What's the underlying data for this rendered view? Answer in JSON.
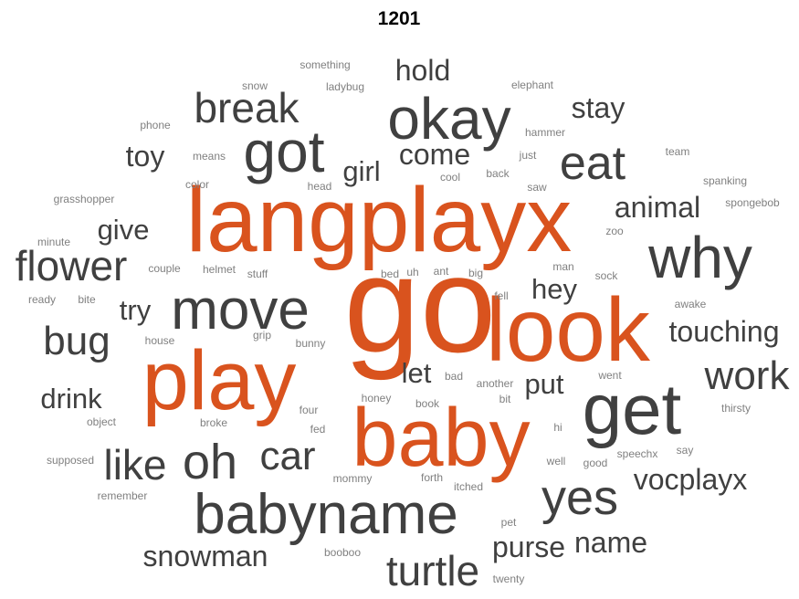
{
  "chart_data": {
    "type": "wordcloud",
    "title": "1201",
    "colors": {
      "highlight": "#D9531E",
      "primary": "#404040",
      "secondary": "#808080"
    },
    "words": [
      {
        "text": "go",
        "weight": 100,
        "tier": "highlight"
      },
      {
        "text": "langplayx",
        "weight": 86,
        "tier": "highlight"
      },
      {
        "text": "look",
        "weight": 82,
        "tier": "highlight"
      },
      {
        "text": "play",
        "weight": 80,
        "tier": "highlight"
      },
      {
        "text": "baby",
        "weight": 78,
        "tier": "highlight"
      },
      {
        "text": "get",
        "weight": 64,
        "tier": "primary"
      },
      {
        "text": "why",
        "weight": 55,
        "tier": "primary"
      },
      {
        "text": "okay",
        "weight": 54,
        "tier": "primary"
      },
      {
        "text": "got",
        "weight": 54,
        "tier": "primary"
      },
      {
        "text": "move",
        "weight": 53,
        "tier": "primary"
      },
      {
        "text": "babyname",
        "weight": 53,
        "tier": "primary"
      },
      {
        "text": "oh",
        "weight": 46,
        "tier": "primary"
      },
      {
        "text": "yes",
        "weight": 45,
        "tier": "primary"
      },
      {
        "text": "eat",
        "weight": 44,
        "tier": "primary"
      },
      {
        "text": "break",
        "weight": 40,
        "tier": "primary"
      },
      {
        "text": "flower",
        "weight": 40,
        "tier": "primary"
      },
      {
        "text": "like",
        "weight": 40,
        "tier": "primary"
      },
      {
        "text": "turtle",
        "weight": 40,
        "tier": "primary"
      },
      {
        "text": "car",
        "weight": 39,
        "tier": "primary"
      },
      {
        "text": "bug",
        "weight": 39,
        "tier": "primary"
      },
      {
        "text": "work",
        "weight": 39,
        "tier": "primary"
      },
      {
        "text": "touching",
        "weight": 30,
        "tier": "primary"
      },
      {
        "text": "come",
        "weight": 30,
        "tier": "primary"
      },
      {
        "text": "animal",
        "weight": 30,
        "tier": "primary"
      },
      {
        "text": "vocplayx",
        "weight": 30,
        "tier": "primary"
      },
      {
        "text": "hold",
        "weight": 30,
        "tier": "primary"
      },
      {
        "text": "stay",
        "weight": 30,
        "tier": "primary"
      },
      {
        "text": "toy",
        "weight": 30,
        "tier": "primary"
      },
      {
        "text": "snowman",
        "weight": 30,
        "tier": "primary"
      },
      {
        "text": "purse",
        "weight": 30,
        "tier": "primary"
      },
      {
        "text": "name",
        "weight": 30,
        "tier": "primary"
      },
      {
        "text": "girl",
        "weight": 28,
        "tier": "primary"
      },
      {
        "text": "give",
        "weight": 28,
        "tier": "primary"
      },
      {
        "text": "try",
        "weight": 28,
        "tier": "primary"
      },
      {
        "text": "hey",
        "weight": 28,
        "tier": "primary"
      },
      {
        "text": "drink",
        "weight": 28,
        "tier": "primary"
      },
      {
        "text": "let",
        "weight": 28,
        "tier": "primary"
      },
      {
        "text": "put",
        "weight": 28,
        "tier": "primary"
      },
      {
        "text": "something",
        "weight": 9,
        "tier": "secondary"
      },
      {
        "text": "snow",
        "weight": 9,
        "tier": "secondary"
      },
      {
        "text": "ladybug",
        "weight": 9,
        "tier": "secondary"
      },
      {
        "text": "elephant",
        "weight": 9,
        "tier": "secondary"
      },
      {
        "text": "phone",
        "weight": 9,
        "tier": "secondary"
      },
      {
        "text": "hammer",
        "weight": 9,
        "tier": "secondary"
      },
      {
        "text": "means",
        "weight": 9,
        "tier": "secondary"
      },
      {
        "text": "just",
        "weight": 9,
        "tier": "secondary"
      },
      {
        "text": "team",
        "weight": 9,
        "tier": "secondary"
      },
      {
        "text": "cool",
        "weight": 9,
        "tier": "secondary"
      },
      {
        "text": "back",
        "weight": 9,
        "tier": "secondary"
      },
      {
        "text": "color",
        "weight": 9,
        "tier": "secondary"
      },
      {
        "text": "head",
        "weight": 9,
        "tier": "secondary"
      },
      {
        "text": "saw",
        "weight": 9,
        "tier": "secondary"
      },
      {
        "text": "spanking",
        "weight": 9,
        "tier": "secondary"
      },
      {
        "text": "grasshopper",
        "weight": 9,
        "tier": "secondary"
      },
      {
        "text": "spongebob",
        "weight": 9,
        "tier": "secondary"
      },
      {
        "text": "zoo",
        "weight": 9,
        "tier": "secondary"
      },
      {
        "text": "minute",
        "weight": 9,
        "tier": "secondary"
      },
      {
        "text": "couple",
        "weight": 9,
        "tier": "secondary"
      },
      {
        "text": "helmet",
        "weight": 9,
        "tier": "secondary"
      },
      {
        "text": "stuff",
        "weight": 9,
        "tier": "secondary"
      },
      {
        "text": "bed",
        "weight": 9,
        "tier": "secondary"
      },
      {
        "text": "uh",
        "weight": 9,
        "tier": "secondary"
      },
      {
        "text": "ant",
        "weight": 9,
        "tier": "secondary"
      },
      {
        "text": "big",
        "weight": 9,
        "tier": "secondary"
      },
      {
        "text": "man",
        "weight": 9,
        "tier": "secondary"
      },
      {
        "text": "sock",
        "weight": 9,
        "tier": "secondary"
      },
      {
        "text": "ready",
        "weight": 9,
        "tier": "secondary"
      },
      {
        "text": "bite",
        "weight": 9,
        "tier": "secondary"
      },
      {
        "text": "fell",
        "weight": 9,
        "tier": "secondary"
      },
      {
        "text": "awake",
        "weight": 9,
        "tier": "secondary"
      },
      {
        "text": "house",
        "weight": 9,
        "tier": "secondary"
      },
      {
        "text": "grip",
        "weight": 9,
        "tier": "secondary"
      },
      {
        "text": "bunny",
        "weight": 9,
        "tier": "secondary"
      },
      {
        "text": "went",
        "weight": 9,
        "tier": "secondary"
      },
      {
        "text": "bad",
        "weight": 9,
        "tier": "secondary"
      },
      {
        "text": "another",
        "weight": 9,
        "tier": "secondary"
      },
      {
        "text": "honey",
        "weight": 9,
        "tier": "secondary"
      },
      {
        "text": "book",
        "weight": 9,
        "tier": "secondary"
      },
      {
        "text": "bit",
        "weight": 9,
        "tier": "secondary"
      },
      {
        "text": "thirsty",
        "weight": 9,
        "tier": "secondary"
      },
      {
        "text": "four",
        "weight": 9,
        "tier": "secondary"
      },
      {
        "text": "object",
        "weight": 9,
        "tier": "secondary"
      },
      {
        "text": "broke",
        "weight": 9,
        "tier": "secondary"
      },
      {
        "text": "fed",
        "weight": 9,
        "tier": "secondary"
      },
      {
        "text": "hi",
        "weight": 9,
        "tier": "secondary"
      },
      {
        "text": "say",
        "weight": 9,
        "tier": "secondary"
      },
      {
        "text": "supposed",
        "weight": 9,
        "tier": "secondary"
      },
      {
        "text": "speechx",
        "weight": 9,
        "tier": "secondary"
      },
      {
        "text": "well",
        "weight": 9,
        "tier": "secondary"
      },
      {
        "text": "good",
        "weight": 9,
        "tier": "secondary"
      },
      {
        "text": "forth",
        "weight": 9,
        "tier": "secondary"
      },
      {
        "text": "mommy",
        "weight": 9,
        "tier": "secondary"
      },
      {
        "text": "itched",
        "weight": 9,
        "tier": "secondary"
      },
      {
        "text": "remember",
        "weight": 9,
        "tier": "secondary"
      },
      {
        "text": "pet",
        "weight": 9,
        "tier": "secondary"
      },
      {
        "text": "booboo",
        "weight": 9,
        "tier": "secondary"
      },
      {
        "text": "twenty",
        "weight": 9,
        "tier": "secondary"
      }
    ]
  }
}
